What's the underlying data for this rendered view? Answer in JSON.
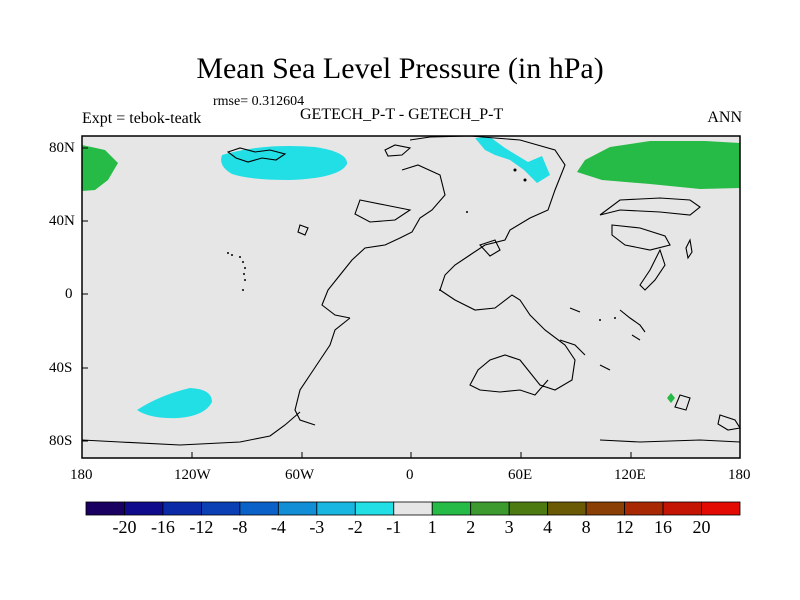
{
  "title": "Mean Sea Level Pressure (in hPa)",
  "rmse": "rmse= 0.312604",
  "experiment": "Expt = tebok-teatk",
  "subtitle": "GETECH_P-T - GETECH_P-T",
  "season": "ANN",
  "axes": {
    "x_ticks": [
      "180",
      "120W",
      "60W",
      "0",
      "60E",
      "120E",
      "180"
    ],
    "y_ticks": [
      "80N",
      "40N",
      "0",
      "40S",
      "80S"
    ]
  },
  "colorbar": {
    "labels": [
      "-20",
      "-16",
      "-12",
      "-8",
      "-4",
      "-3",
      "-2",
      "-1",
      "1",
      "2",
      "3",
      "4",
      "8",
      "12",
      "16",
      "20"
    ],
    "colors": [
      "#1a0060",
      "#100a8c",
      "#0a2aa8",
      "#0a40b4",
      "#0a62c8",
      "#128ed6",
      "#1ab6e2",
      "#22dfe6",
      "#e6e6e6",
      "#26bb46",
      "#3c9a2e",
      "#4e7a12",
      "#6a5a06",
      "#8a4004",
      "#a82804",
      "#c41404",
      "#e20a02"
    ]
  },
  "colors": {
    "background_field": "#e6e6e6",
    "positive_anomaly": "#26bb46",
    "negative_anomaly": "#22dfe6",
    "coastline": "#000000"
  }
}
